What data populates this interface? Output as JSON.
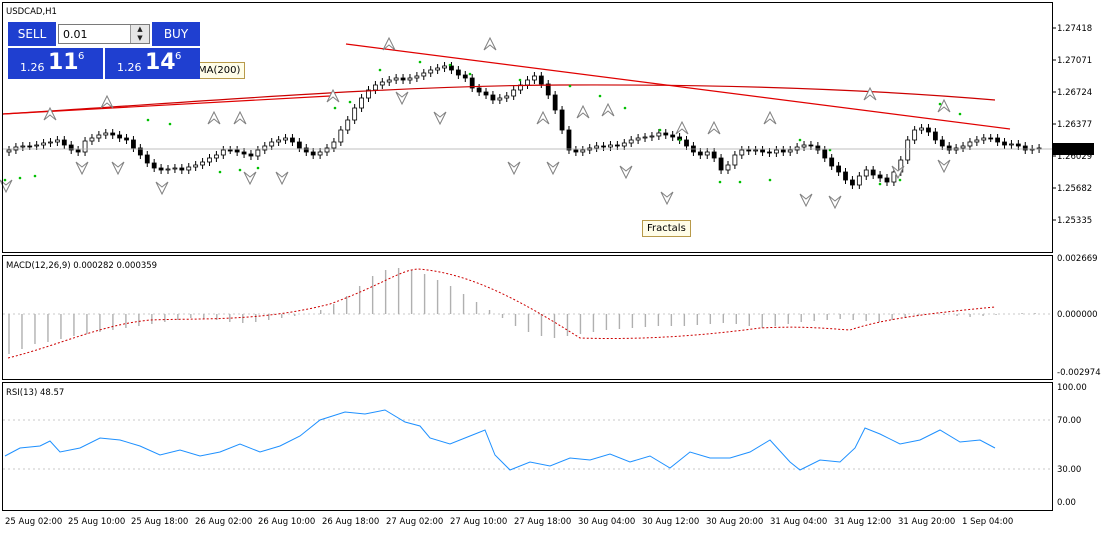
{
  "chart": {
    "symbol_label": "USDCAD,H1",
    "current_price": "1.26116",
    "price_axis_labels": [
      "1.27418",
      "1.27071",
      "1.26724",
      "1.26377",
      "1.26029",
      "1.25682",
      "1.25335"
    ],
    "price_range": [
      1.2505,
      1.277
    ],
    "time_labels": [
      "25 Aug 02:00",
      "25 Aug 10:00",
      "25 Aug 18:00",
      "26 Aug 02:00",
      "26 Aug 10:00",
      "26 Aug 18:00",
      "27 Aug 02:00",
      "27 Aug 10:00",
      "27 Aug 18:00",
      "30 Aug 04:00",
      "30 Aug 12:00",
      "30 Aug 20:00",
      "31 Aug 04:00",
      "31 Aug 12:00",
      "31 Aug 20:00",
      "1 Sep 04:00"
    ],
    "colors": {
      "up": "#ffffff",
      "down": "#000000",
      "ma": "#cc0000",
      "trendline": "#e00000",
      "psar": "#00c000",
      "fractal": "#808080",
      "macd_hist": "#b0b0b0",
      "macd_signal": "#cc0000",
      "rsi": "#1e90ff",
      "grid": "#c8c8c8"
    }
  },
  "trade_panel": {
    "sell_label": "SELL",
    "buy_label": "BUY",
    "lot_value": "0.01",
    "sell_prefix": "1.26",
    "sell_big": "11",
    "sell_sup": "6",
    "buy_prefix": "1.26",
    "buy_big": "14",
    "buy_sup": "6"
  },
  "annotations": {
    "ma_label": "MA(200)",
    "fractals_label": "Fractals"
  },
  "macd": {
    "label": "MACD(12,26,9) 0.000282 0.000359",
    "axis_labels": [
      "0.002669",
      "0.000000",
      "-0.002974"
    ]
  },
  "rsi": {
    "label": "RSI(13) 48.57",
    "axis_labels": [
      "100.00",
      "70.00",
      "30.00",
      "0.00"
    ]
  }
}
